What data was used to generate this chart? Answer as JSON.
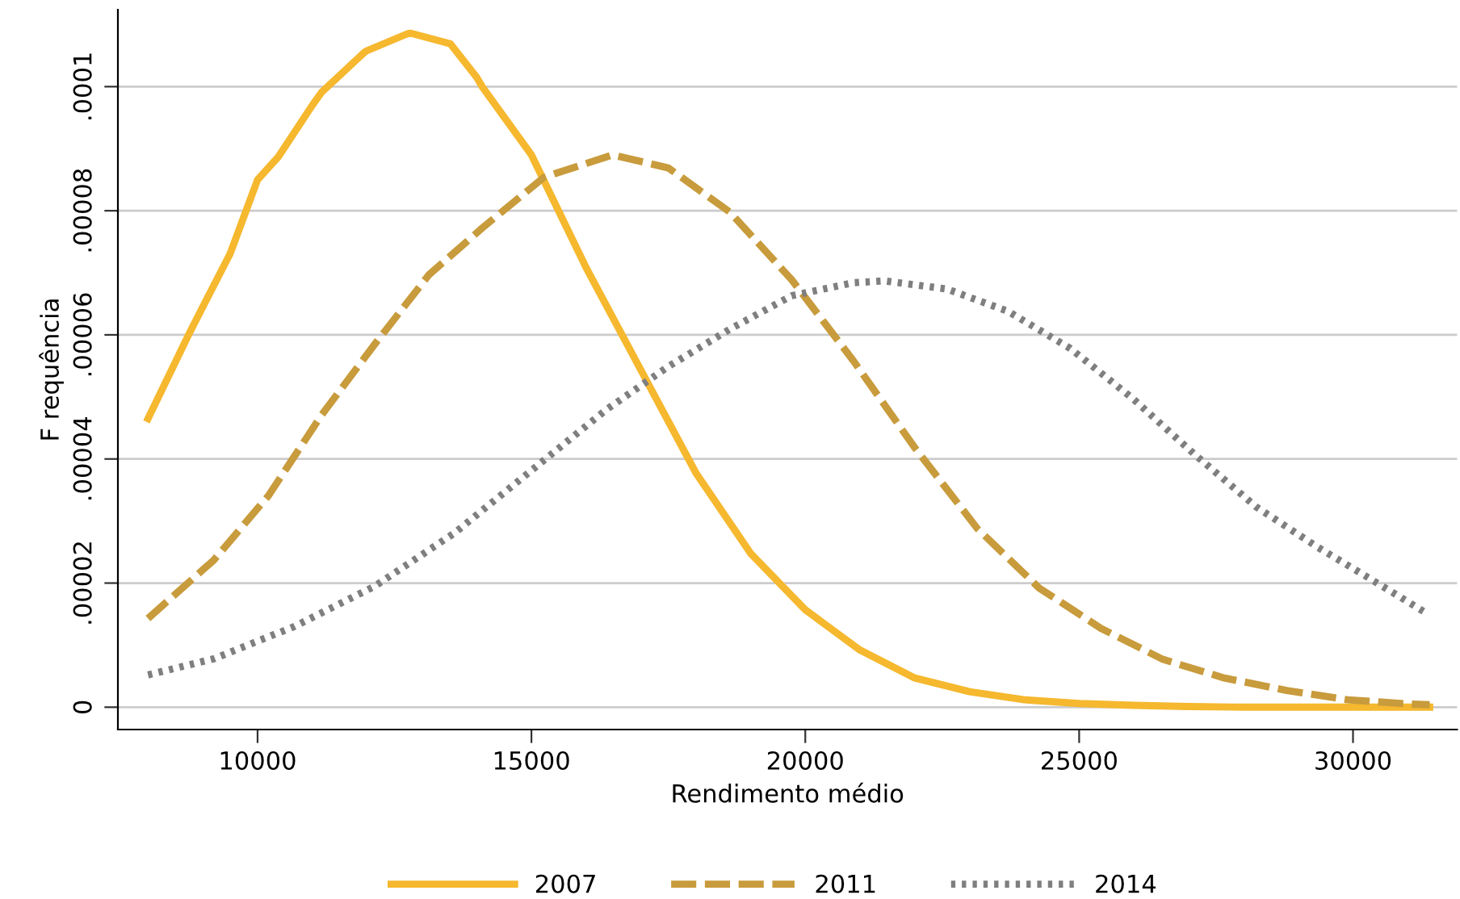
{
  "chart_data": {
    "type": "line",
    "xlabel": "Rendimento médio",
    "ylabel": "F requência",
    "xlim": [
      7450,
      31900
    ],
    "xticks": [
      10000,
      15000,
      20000,
      25000,
      30000
    ],
    "ylim": [
      -3.6e-06,
      0.0001124
    ],
    "yticks": [
      0,
      {
        "value": 2e-05,
        "label": ".00002"
      },
      {
        "value": 4e-05,
        "label": ".00004"
      },
      {
        "value": 6e-05,
        "label": ".00006"
      },
      {
        "value": 8e-05,
        "label": ".00008"
      },
      {
        "value": 0.0001,
        "label": ".0001"
      }
    ],
    "grid": "y",
    "legend": "bottom",
    "series": [
      {
        "name": "2007",
        "color": "#f5b82e",
        "line_style": "solid",
        "x": [
          8000,
          8740,
          9000,
          9500,
          10000,
          10380,
          11000,
          11170,
          11960,
          12000,
          12730,
          12800,
          13520,
          14000,
          14100,
          15000,
          16000,
          17000,
          18000,
          19000,
          20000,
          21000,
          22000,
          23000,
          24000,
          25000,
          26000,
          27000,
          28000,
          29000,
          30000,
          31000,
          31400
        ],
        "values": [
          4.65e-05,
          6e-05,
          6.45e-05,
          7.31e-05,
          8.5e-05,
          8.87e-05,
          9.7e-05,
          9.91e-05,
          0.0001056,
          0.0001058,
          0.0001085,
          0.0001086,
          0.0001069,
          0.0001015,
          0.0001,
          8.9e-05,
          7.08e-05,
          5.43e-05,
          3.78e-05,
          2.48e-05,
          1.57e-05,
          9.2e-06,
          4.7e-06,
          2.5e-06,
          1.2e-06,
          6e-07,
          3e-07,
          1e-07,
          0,
          0,
          0,
          0,
          0
        ]
      },
      {
        "name": "2011",
        "color": "#c89b3c",
        "line_style": "dashed",
        "x": [
          8000,
          9200,
          10200,
          11170,
          12140,
          13130,
          14100,
          15230,
          16480,
          17500,
          18620,
          19750,
          20880,
          22000,
          23140,
          24270,
          25400,
          26530,
          27650,
          28790,
          29900,
          31050,
          31400
        ],
        "values": [
          1.43e-05,
          2.37e-05,
          3.41e-05,
          4.71e-05,
          5.85e-05,
          6.97e-05,
          7.72e-05,
          8.54e-05,
          8.9e-05,
          8.69e-05,
          7.98e-05,
          6.89e-05,
          5.58e-05,
          4.18e-05,
          2.88e-05,
          1.92e-05,
          1.27e-05,
          7.7e-06,
          4.7e-06,
          2.7e-06,
          1.2e-06,
          5e-07,
          4e-07
        ]
      },
      {
        "name": "2014",
        "color": "#7f7f7f",
        "line_style": "dotted",
        "x": [
          8000,
          9200,
          10670,
          12140,
          13600,
          14100,
          15230,
          16360,
          17500,
          18620,
          19750,
          20880,
          21440,
          22580,
          23700,
          24840,
          25970,
          27100,
          28230,
          29350,
          30480,
          31330
        ],
        "values": [
          5.2e-06,
          7.8e-06,
          1.3e-05,
          1.95e-05,
          2.81e-05,
          3.17e-05,
          3.98e-05,
          4.79e-05,
          5.49e-05,
          6.09e-05,
          6.63e-05,
          6.84e-05,
          6.87e-05,
          6.74e-05,
          6.38e-05,
          5.78e-05,
          4.98e-05,
          4.08e-05,
          3.23e-05,
          2.58e-05,
          1.98e-05,
          1.52e-05
        ]
      }
    ]
  }
}
